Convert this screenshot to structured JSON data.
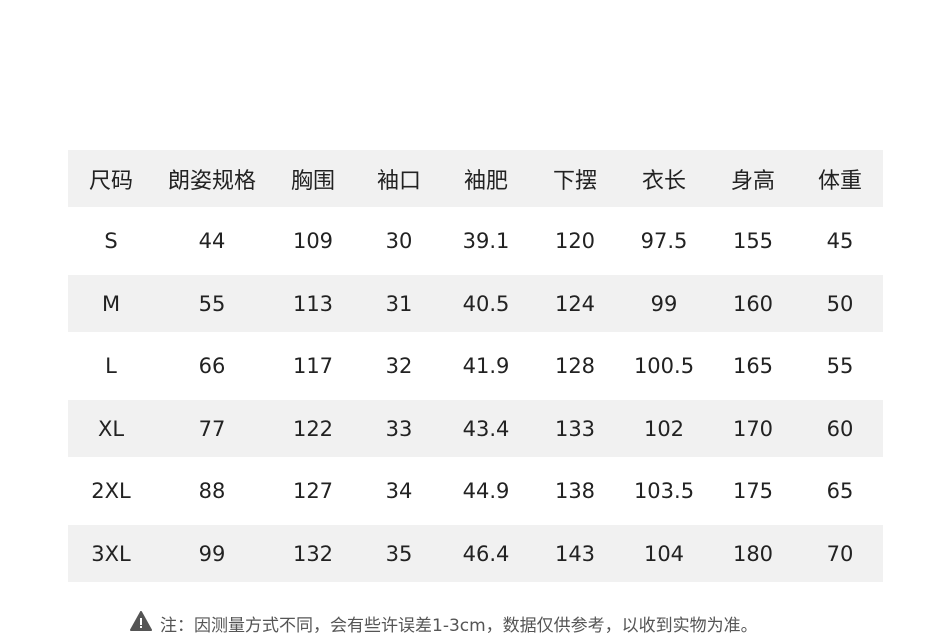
{
  "table": {
    "headers": [
      "尺码",
      "朗姿规格",
      "胸围",
      "袖口",
      "袖肥",
      "下摆",
      "衣长",
      "身高",
      "体重"
    ],
    "rows": [
      [
        "S",
        "44",
        "109",
        "30",
        "39.1",
        "120",
        "97.5",
        "155",
        "45"
      ],
      [
        "M",
        "55",
        "113",
        "31",
        "40.5",
        "124",
        "99",
        "160",
        "50"
      ],
      [
        "L",
        "66",
        "117",
        "32",
        "41.9",
        "128",
        "100.5",
        "165",
        "55"
      ],
      [
        "XL",
        "77",
        "122",
        "33",
        "43.4",
        "133",
        "102",
        "170",
        "60"
      ],
      [
        "2XL",
        "88",
        "127",
        "34",
        "44.9",
        "138",
        "103.5",
        "175",
        "65"
      ],
      [
        "3XL",
        "99",
        "132",
        "35",
        "46.4",
        "143",
        "104",
        "180",
        "70"
      ]
    ]
  },
  "note": {
    "icon": "warning-icon",
    "text": "注：因测量方式不同，会有些许误差1-3cm，数据仅供参考，以收到实物为准。"
  }
}
